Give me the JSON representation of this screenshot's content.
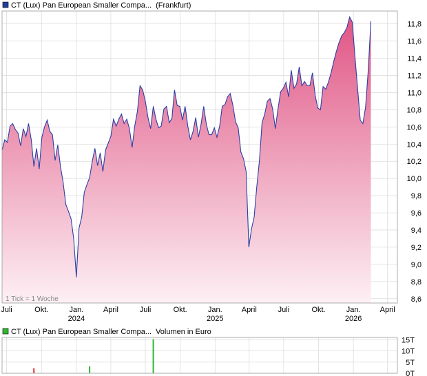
{
  "chart_data": [
    {
      "type": "area",
      "legend": {
        "name": "CT (Lux) Pan European Smaller Compa...",
        "suffix": "(Frankfurt)",
        "color": "#1f3f9f"
      },
      "note": "1 Tick = 1 Woche",
      "line_color": "#2b3fa6",
      "fill_top_color": "#e05585",
      "fill_bottom_color": "#fdf0f4",
      "ylim": [
        8.55,
        11.95
      ],
      "y_ticks": [
        "8,6",
        "8,8",
        "9,0",
        "9,2",
        "9,4",
        "9,6",
        "9,8",
        "10,0",
        "10,2",
        "10,4",
        "10,6",
        "10,8",
        "11,0",
        "11,2",
        "11,4",
        "11,6",
        "11,8"
      ],
      "y_tick_values": [
        8.6,
        8.8,
        9.0,
        9.2,
        9.4,
        9.6,
        9.8,
        10.0,
        10.2,
        10.4,
        10.6,
        10.8,
        11.0,
        11.2,
        11.4,
        11.6,
        11.8
      ],
      "x_range": [
        "2023-06-19",
        "2026-04-27"
      ],
      "x_ticks": [
        {
          "date": "2023-07-01",
          "label": "Juli",
          "sub": ""
        },
        {
          "date": "2023-10-01",
          "label": "Okt.",
          "sub": ""
        },
        {
          "date": "2024-01-01",
          "label": "Jan.",
          "sub": "2024"
        },
        {
          "date": "2024-04-01",
          "label": "April",
          "sub": ""
        },
        {
          "date": "2024-07-01",
          "label": "Juli",
          "sub": ""
        },
        {
          "date": "2024-10-01",
          "label": "Okt.",
          "sub": ""
        },
        {
          "date": "2025-01-01",
          "label": "Jan.",
          "sub": "2025"
        },
        {
          "date": "2025-04-01",
          "label": "April",
          "sub": ""
        },
        {
          "date": "2025-07-01",
          "label": "Juli",
          "sub": ""
        },
        {
          "date": "2025-10-01",
          "label": "Okt.",
          "sub": ""
        },
        {
          "date": "2026-01-01",
          "label": "Jan.",
          "sub": "2026"
        },
        {
          "date": "2026-04-01",
          "label": "April",
          "sub": ""
        }
      ],
      "points": [
        [
          "2023-06-19",
          10.33
        ],
        [
          "2023-06-26",
          10.45
        ],
        [
          "2023-07-03",
          10.42
        ],
        [
          "2023-07-10",
          10.61
        ],
        [
          "2023-07-17",
          10.64
        ],
        [
          "2023-07-24",
          10.57
        ],
        [
          "2023-07-31",
          10.53
        ],
        [
          "2023-08-07",
          10.38
        ],
        [
          "2023-08-14",
          10.58
        ],
        [
          "2023-08-21",
          10.49
        ],
        [
          "2023-08-28",
          10.64
        ],
        [
          "2023-09-04",
          10.45
        ],
        [
          "2023-09-11",
          10.14
        ],
        [
          "2023-09-18",
          10.35
        ],
        [
          "2023-09-25",
          10.11
        ],
        [
          "2023-10-02",
          10.48
        ],
        [
          "2023-10-09",
          10.6
        ],
        [
          "2023-10-16",
          10.68
        ],
        [
          "2023-10-23",
          10.55
        ],
        [
          "2023-10-30",
          10.51
        ],
        [
          "2023-11-06",
          10.21
        ],
        [
          "2023-11-13",
          10.39
        ],
        [
          "2023-11-20",
          10.14
        ],
        [
          "2023-11-27",
          9.96
        ],
        [
          "2023-12-04",
          9.7
        ],
        [
          "2023-12-11",
          9.62
        ],
        [
          "2023-12-18",
          9.53
        ],
        [
          "2023-12-25",
          9.3
        ],
        [
          "2024-01-01",
          8.85
        ],
        [
          "2024-01-08",
          9.42
        ],
        [
          "2024-01-15",
          9.55
        ],
        [
          "2024-01-22",
          9.84
        ],
        [
          "2024-01-29",
          9.93
        ],
        [
          "2024-02-05",
          10.01
        ],
        [
          "2024-02-12",
          10.2
        ],
        [
          "2024-02-19",
          10.35
        ],
        [
          "2024-02-26",
          10.15
        ],
        [
          "2024-03-04",
          10.3
        ],
        [
          "2024-03-11",
          10.08
        ],
        [
          "2024-03-18",
          10.33
        ],
        [
          "2024-03-25",
          10.41
        ],
        [
          "2024-04-01",
          10.49
        ],
        [
          "2024-04-08",
          10.69
        ],
        [
          "2024-04-15",
          10.61
        ],
        [
          "2024-04-22",
          10.69
        ],
        [
          "2024-04-29",
          10.75
        ],
        [
          "2024-05-06",
          10.64
        ],
        [
          "2024-05-13",
          10.69
        ],
        [
          "2024-05-20",
          10.58
        ],
        [
          "2024-05-27",
          10.36
        ],
        [
          "2024-06-03",
          10.61
        ],
        [
          "2024-06-10",
          10.78
        ],
        [
          "2024-06-17",
          11.08
        ],
        [
          "2024-06-24",
          11.03
        ],
        [
          "2024-07-01",
          10.9
        ],
        [
          "2024-07-08",
          10.71
        ],
        [
          "2024-07-15",
          10.58
        ],
        [
          "2024-07-22",
          10.84
        ],
        [
          "2024-07-29",
          10.69
        ],
        [
          "2024-08-05",
          10.59
        ],
        [
          "2024-08-12",
          10.61
        ],
        [
          "2024-08-19",
          10.81
        ],
        [
          "2024-08-26",
          10.84
        ],
        [
          "2024-09-02",
          10.65
        ],
        [
          "2024-09-09",
          10.7
        ],
        [
          "2024-09-16",
          11.03
        ],
        [
          "2024-09-23",
          10.85
        ],
        [
          "2024-09-30",
          10.84
        ],
        [
          "2024-10-07",
          10.68
        ],
        [
          "2024-10-14",
          10.84
        ],
        [
          "2024-10-21",
          10.61
        ],
        [
          "2024-10-28",
          10.45
        ],
        [
          "2024-11-04",
          10.55
        ],
        [
          "2024-11-11",
          10.71
        ],
        [
          "2024-11-18",
          10.48
        ],
        [
          "2024-11-25",
          10.63
        ],
        [
          "2024-12-02",
          10.84
        ],
        [
          "2024-12-09",
          10.63
        ],
        [
          "2024-12-16",
          10.51
        ],
        [
          "2024-12-23",
          10.51
        ],
        [
          "2024-12-30",
          10.59
        ],
        [
          "2025-01-06",
          10.48
        ],
        [
          "2025-01-13",
          10.61
        ],
        [
          "2025-01-20",
          10.84
        ],
        [
          "2025-01-27",
          10.86
        ],
        [
          "2025-02-03",
          10.95
        ],
        [
          "2025-02-10",
          10.99
        ],
        [
          "2025-02-17",
          10.85
        ],
        [
          "2025-02-24",
          10.66
        ],
        [
          "2025-03-03",
          10.59
        ],
        [
          "2025-03-10",
          10.31
        ],
        [
          "2025-03-17",
          10.23
        ],
        [
          "2025-03-24",
          10.08
        ],
        [
          "2025-03-31",
          9.2
        ],
        [
          "2025-04-07",
          9.41
        ],
        [
          "2025-04-14",
          9.55
        ],
        [
          "2025-04-21",
          9.9
        ],
        [
          "2025-04-28",
          10.21
        ],
        [
          "2025-05-05",
          10.65
        ],
        [
          "2025-05-12",
          10.75
        ],
        [
          "2025-05-19",
          10.9
        ],
        [
          "2025-05-26",
          10.93
        ],
        [
          "2025-06-02",
          10.81
        ],
        [
          "2025-06-09",
          10.58
        ],
        [
          "2025-06-16",
          10.81
        ],
        [
          "2025-06-23",
          11.01
        ],
        [
          "2025-06-30",
          11.05
        ],
        [
          "2025-07-07",
          11.12
        ],
        [
          "2025-07-14",
          10.95
        ],
        [
          "2025-07-21",
          11.26
        ],
        [
          "2025-07-28",
          11.05
        ],
        [
          "2025-08-04",
          11.1
        ],
        [
          "2025-08-11",
          11.3
        ],
        [
          "2025-08-18",
          11.08
        ],
        [
          "2025-08-25",
          11.13
        ],
        [
          "2025-09-01",
          11.08
        ],
        [
          "2025-09-08",
          11.08
        ],
        [
          "2025-09-15",
          11.23
        ],
        [
          "2025-09-22",
          10.97
        ],
        [
          "2025-09-29",
          10.82
        ],
        [
          "2025-10-06",
          10.8
        ],
        [
          "2025-10-13",
          11.07
        ],
        [
          "2025-10-20",
          11.04
        ],
        [
          "2025-10-27",
          11.12
        ],
        [
          "2025-11-03",
          11.23
        ],
        [
          "2025-11-10",
          11.36
        ],
        [
          "2025-11-17",
          11.48
        ],
        [
          "2025-11-24",
          11.58
        ],
        [
          "2025-12-01",
          11.66
        ],
        [
          "2025-12-08",
          11.7
        ],
        [
          "2025-12-15",
          11.76
        ],
        [
          "2025-12-22",
          11.88
        ],
        [
          "2025-12-29",
          11.82
        ],
        [
          "2026-01-05",
          11.42
        ],
        [
          "2026-01-12",
          11.05
        ],
        [
          "2026-01-19",
          10.68
        ],
        [
          "2026-01-26",
          10.64
        ],
        [
          "2026-02-02",
          10.83
        ],
        [
          "2026-02-09",
          11.25
        ],
        [
          "2026-02-16",
          11.83
        ]
      ]
    },
    {
      "type": "bar",
      "legend": {
        "name": "CT (Lux) Pan European Smaller Compa...",
        "suffix": "Volumen in Euro",
        "color": "#2eb82e"
      },
      "bar_color": "#2eb82e",
      "ylim": [
        0,
        16000
      ],
      "y_ticks": [
        "0T",
        "5T",
        "10T",
        "15T"
      ],
      "y_tick_values": [
        0,
        5000,
        10000,
        15000
      ],
      "bars": [
        {
          "date": "2023-09-11",
          "value": 2200,
          "color": "#e03030"
        },
        {
          "date": "2024-02-05",
          "value": 3100,
          "color": "#2eb82e"
        },
        {
          "date": "2024-07-22",
          "value": 15200,
          "color": "#2eb82e"
        }
      ]
    }
  ]
}
